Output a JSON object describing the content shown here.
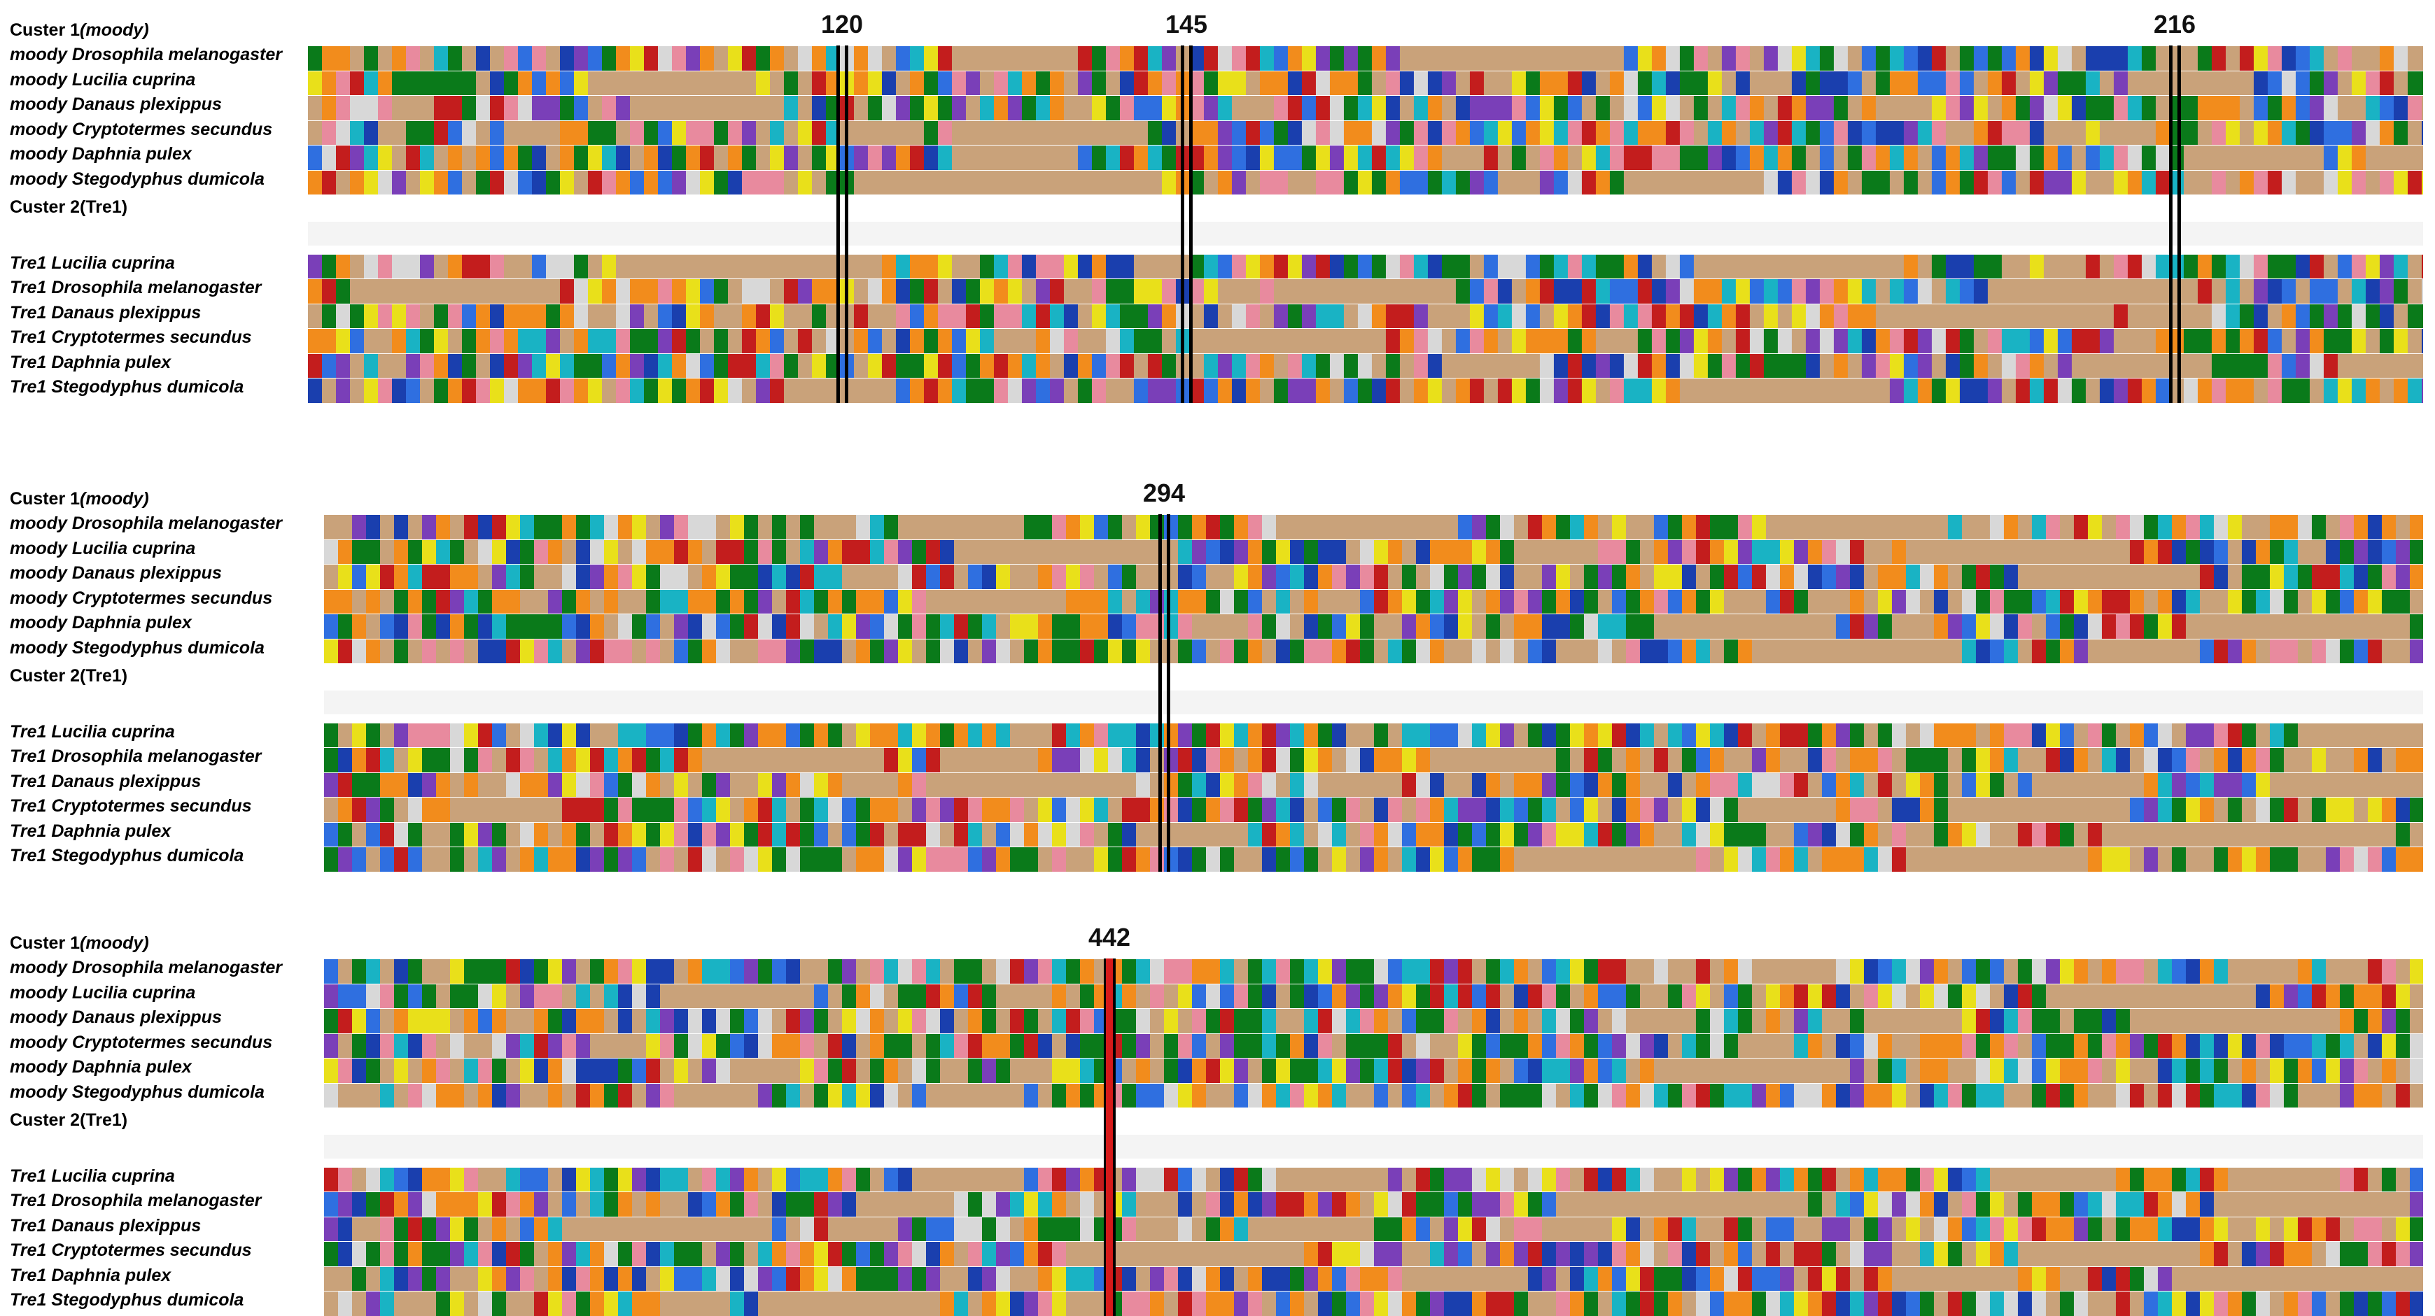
{
  "figure": {
    "panels": [
      {
        "id": "panel-1",
        "cluster1_label": "Custer 1",
        "cluster1_sub": "(moody)",
        "cluster2_label": "Custer 2(Tre1)",
        "rows_top": [
          {
            "gene": "moody",
            "species": "Drosophila melanogaster"
          },
          {
            "gene": "moody ",
            "species": "Lucilia cuprina"
          },
          {
            "gene": "moody",
            "species": "Danaus plexippus"
          },
          {
            "gene": "moody",
            "species": "Cryptotermes secundus"
          },
          {
            "gene": "moody",
            "species": "Daphnia pulex"
          },
          {
            "gene": "moody",
            "species": "Stegodyphus dumicola"
          }
        ],
        "rows_bottom": [
          {
            "gene": "Tre1",
            "species": "Lucilia cuprina"
          },
          {
            "gene": "Tre1",
            "species": "Drosophila melanogaster"
          },
          {
            "gene": "Tre1",
            "species": "Danaus plexippus"
          },
          {
            "gene": "Tre1",
            "species": "Cryptotermes secundus"
          },
          {
            "gene": "Tre1",
            "species": "Daphnia pulex"
          },
          {
            "gene": "Tre1",
            "species": "Stegodyphus dumicola"
          }
        ],
        "markers": [
          "120",
          "145",
          "216"
        ]
      },
      {
        "id": "panel-2",
        "cluster1_label": "Custer 1",
        "cluster1_sub": "(moody)",
        "cluster2_label": "Custer 2(Tre1)",
        "rows_top": [
          {
            "gene": "moody",
            "species": "Drosophila melanogaster"
          },
          {
            "gene": "moody ",
            "species": "Lucilia cuprina"
          },
          {
            "gene": "moody",
            "species": "Danaus plexippus"
          },
          {
            "gene": "moody",
            "species": "Cryptotermes secundus"
          },
          {
            "gene": "moody",
            "species": "Daphnia pulex"
          },
          {
            "gene": "moody",
            "species": "Stegodyphus dumicola"
          }
        ],
        "rows_bottom": [
          {
            "gene": "Tre1",
            "species": "Lucilia cuprina"
          },
          {
            "gene": "Tre1",
            "species": "Drosophila melanogaster"
          },
          {
            "gene": "Tre1",
            "species": "Danaus plexippus"
          },
          {
            "gene": "Tre1",
            "species": "Cryptotermes secundus"
          },
          {
            "gene": "Tre1",
            "species": "Daphnia pulex"
          },
          {
            "gene": "Tre1",
            "species": "Stegodyphus dumicola"
          }
        ],
        "markers": [
          "294"
        ]
      },
      {
        "id": "panel-3",
        "cluster1_label": "Custer 1",
        "cluster1_sub": "(moody)",
        "cluster2_label": "Custer 2(Tre1)",
        "rows_top": [
          {
            "gene": "moody",
            "species": "Drosophila melanogaster"
          },
          {
            "gene": "moody ",
            "species": "Lucilia cuprina"
          },
          {
            "gene": "moody",
            "species": "Danaus plexippus"
          },
          {
            "gene": "moody",
            "species": "Cryptotermes secundus"
          },
          {
            "gene": "moody",
            "species": "Daphnia pulex"
          },
          {
            "gene": "moody",
            "species": "Stegodyphus dumicola"
          }
        ],
        "rows_bottom": [
          {
            "gene": "Tre1",
            "species": "Lucilia cuprina"
          },
          {
            "gene": "Tre1",
            "species": "Drosophila melanogaster"
          },
          {
            "gene": "Tre1",
            "species": "Danaus plexippus"
          },
          {
            "gene": "Tre1",
            "species": "Cryptotermes secundus"
          },
          {
            "gene": "Tre1",
            "species": "Daphnia pulex"
          },
          {
            "gene": "Tre1",
            "species": "Stegodyphus dumicola"
          }
        ],
        "markers": [
          "442"
        ]
      }
    ],
    "colors": {
      "gap": "#c9a27a",
      "palette": [
        "#0a7a1a",
        "#1a3fae",
        "#f28c1c",
        "#c31d1d",
        "#7a3fb8",
        "#19b3c4",
        "#e9e01a",
        "#d8d8d8",
        "#e88a9e",
        "#2f6fe0",
        "#0a7a1a",
        "#f28c1c"
      ],
      "marker_line": "#000000",
      "highlight_442": "#d71a1a"
    }
  }
}
